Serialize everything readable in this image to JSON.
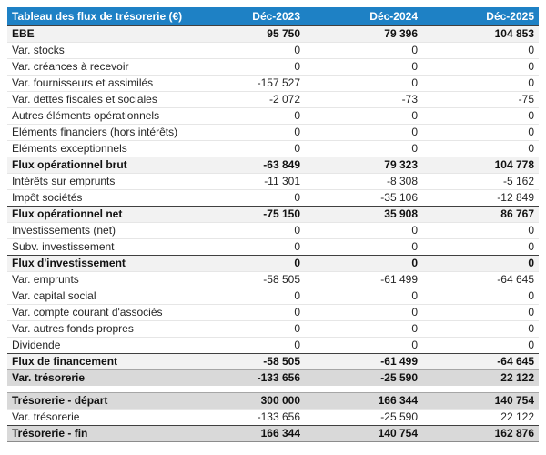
{
  "colors": {
    "header_bg": "#1e81c5",
    "header_text": "#ffffff",
    "subtotal_row_bg": "#f2f2f2",
    "total_row_bg": "#d9d9d9",
    "dark_border": "#404040",
    "light_border": "#e6e6e6",
    "body_text": "#262626"
  },
  "table": {
    "title": "Tableau des flux de trésorerie (€)",
    "columns": [
      "Déc-2023",
      "Déc-2024",
      "Déc-2025"
    ],
    "rows": [
      {
        "label": "EBE",
        "values": [
          "95 750",
          "79 396",
          "104 853"
        ],
        "style": "subtotal"
      },
      {
        "label": "Var. stocks",
        "values": [
          "0",
          "0",
          "0"
        ],
        "style": "normal"
      },
      {
        "label": "Var. créances à recevoir",
        "values": [
          "0",
          "0",
          "0"
        ],
        "style": "normal"
      },
      {
        "label": "Var. fournisseurs et assimilés",
        "values": [
          "-157 527",
          "0",
          "0"
        ],
        "style": "normal"
      },
      {
        "label": "Var. dettes fiscales et sociales",
        "values": [
          "-2 072",
          "-73",
          "-75"
        ],
        "style": "normal"
      },
      {
        "label": "Autres éléments opérationnels",
        "values": [
          "0",
          "0",
          "0"
        ],
        "style": "normal"
      },
      {
        "label": "Eléments financiers (hors intérêts)",
        "values": [
          "0",
          "0",
          "0"
        ],
        "style": "normal"
      },
      {
        "label": "Eléments exceptionnels",
        "values": [
          "0",
          "0",
          "0"
        ],
        "style": "normal"
      },
      {
        "label": "Flux opérationnel brut",
        "values": [
          "-63 849",
          "79 323",
          "104 778"
        ],
        "style": "subtotal"
      },
      {
        "label": "Intérêts sur emprunts",
        "values": [
          "-11 301",
          "-8 308",
          "-5 162"
        ],
        "style": "normal"
      },
      {
        "label": "Impôt sociétés",
        "values": [
          "0",
          "-35 106",
          "-12 849"
        ],
        "style": "normal"
      },
      {
        "label": "Flux opérationnel net",
        "values": [
          "-75 150",
          "35 908",
          "86 767"
        ],
        "style": "subtotal"
      },
      {
        "label": "Investissements (net)",
        "values": [
          "0",
          "0",
          "0"
        ],
        "style": "normal"
      },
      {
        "label": "Subv. investissement",
        "values": [
          "0",
          "0",
          "0"
        ],
        "style": "normal"
      },
      {
        "label": "Flux d'investissement",
        "values": [
          "0",
          "0",
          "0"
        ],
        "style": "subtotal"
      },
      {
        "label": "Var. emprunts",
        "values": [
          "-58 505",
          "-61 499",
          "-64 645"
        ],
        "style": "normal"
      },
      {
        "label": "Var. capital social",
        "values": [
          "0",
          "0",
          "0"
        ],
        "style": "normal"
      },
      {
        "label": "Var. compte courant d'associés",
        "values": [
          "0",
          "0",
          "0"
        ],
        "style": "normal"
      },
      {
        "label": "Var. autres fonds propres",
        "values": [
          "0",
          "0",
          "0"
        ],
        "style": "normal"
      },
      {
        "label": "Dividende",
        "values": [
          "0",
          "0",
          "0"
        ],
        "style": "normal"
      },
      {
        "label": "Flux de financement",
        "values": [
          "-58 505",
          "-61 499",
          "-64 645"
        ],
        "style": "subtotal"
      },
      {
        "label": "Var. trésorerie",
        "values": [
          "-133 656",
          "-25 590",
          "22 122"
        ],
        "style": "total"
      },
      {
        "label": "",
        "values": [],
        "style": "spacer"
      },
      {
        "label": "Trésorerie - départ",
        "values": [
          "300 000",
          "166 344",
          "140 754"
        ],
        "style": "total"
      },
      {
        "label": "Var. trésorerie",
        "values": [
          "-133 656",
          "-25 590",
          "22 122"
        ],
        "style": "normal"
      },
      {
        "label": "Trésorerie - fin",
        "values": [
          "166 344",
          "140 754",
          "162 876"
        ],
        "style": "grand"
      }
    ]
  }
}
